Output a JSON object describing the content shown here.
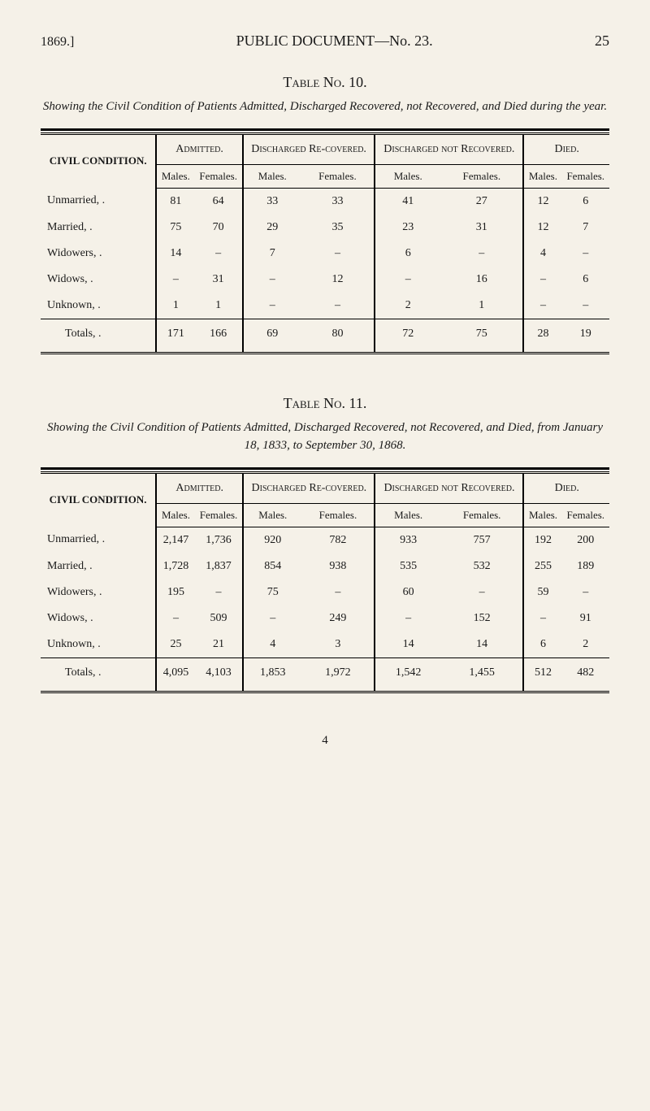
{
  "header": {
    "year": "1869.]",
    "title": "PUBLIC DOCUMENT—No. 23.",
    "page": "25"
  },
  "table10": {
    "title": "Table No. 10.",
    "caption": "Showing the Civil Condition of Patients Admitted, Discharged Recovered, not Recovered, and Died during the year.",
    "groups": [
      "Admitted.",
      "Discharged Re-covered.",
      "Discharged not Recovered.",
      "Died."
    ],
    "subheaders": [
      "Males.",
      "Females."
    ],
    "civil_label": "CIVIL CONDITION.",
    "rows": [
      {
        "label": "Unmarried,",
        "dot": ".",
        "cells": [
          "81",
          "64",
          "33",
          "33",
          "41",
          "27",
          "12",
          "6"
        ]
      },
      {
        "label": "Married,",
        "dot": ".",
        "cells": [
          "75",
          "70",
          "29",
          "35",
          "23",
          "31",
          "12",
          "7"
        ]
      },
      {
        "label": "Widowers,",
        "dot": ".",
        "cells": [
          "14",
          "–",
          "7",
          "–",
          "6",
          "–",
          "4",
          "–"
        ]
      },
      {
        "label": "Widows,",
        "dot": ".",
        "cells": [
          "–",
          "31",
          "–",
          "12",
          "–",
          "16",
          "–",
          "6"
        ]
      },
      {
        "label": "Unknown,",
        "dot": ".",
        "cells": [
          "1",
          "1",
          "–",
          "–",
          "2",
          "1",
          "–",
          "–"
        ]
      }
    ],
    "totals": {
      "label": "Totals,",
      "dot": ".",
      "cells": [
        "171",
        "166",
        "69",
        "80",
        "72",
        "75",
        "28",
        "19"
      ]
    }
  },
  "table11": {
    "title": "Table No. 11.",
    "caption": "Showing the Civil Condition of Patients Admitted, Discharged Recovered, not Recovered, and Died, from January 18, 1833, to September 30, 1868.",
    "groups": [
      "Admitted.",
      "Discharged Re-covered.",
      "Discharged not Recovered.",
      "Died."
    ],
    "subheaders": [
      "Males.",
      "Females."
    ],
    "civil_label": "CIVIL CONDITION.",
    "rows": [
      {
        "label": "Unmarried,",
        "dot": ".",
        "cells": [
          "2,147",
          "1,736",
          "920",
          "782",
          "933",
          "757",
          "192",
          "200"
        ]
      },
      {
        "label": "Married,",
        "dot": ".",
        "cells": [
          "1,728",
          "1,837",
          "854",
          "938",
          "535",
          "532",
          "255",
          "189"
        ]
      },
      {
        "label": "Widowers,",
        "dot": ".",
        "cells": [
          "195",
          "–",
          "75",
          "–",
          "60",
          "–",
          "59",
          "–"
        ]
      },
      {
        "label": "Widows,",
        "dot": ".",
        "cells": [
          "–",
          "509",
          "–",
          "249",
          "–",
          "152",
          "–",
          "91"
        ]
      },
      {
        "label": "Unknown,",
        "dot": ".",
        "cells": [
          "25",
          "21",
          "4",
          "3",
          "14",
          "14",
          "6",
          "2"
        ]
      }
    ],
    "totals": {
      "label": "Totals,",
      "dot": ".",
      "cells": [
        "4,095",
        "4,103",
        "1,853",
        "1,972",
        "1,542",
        "1,455",
        "512",
        "482"
      ]
    }
  },
  "footer": {
    "num": "4"
  },
  "styling": {
    "background_color": "#f5f1e8",
    "text_color": "#1a1a1a",
    "border_color": "#000000",
    "body_font": "Georgia, Times New Roman, serif",
    "title_fontsize": 18,
    "caption_fontsize": 15,
    "cell_fontsize": 14
  }
}
